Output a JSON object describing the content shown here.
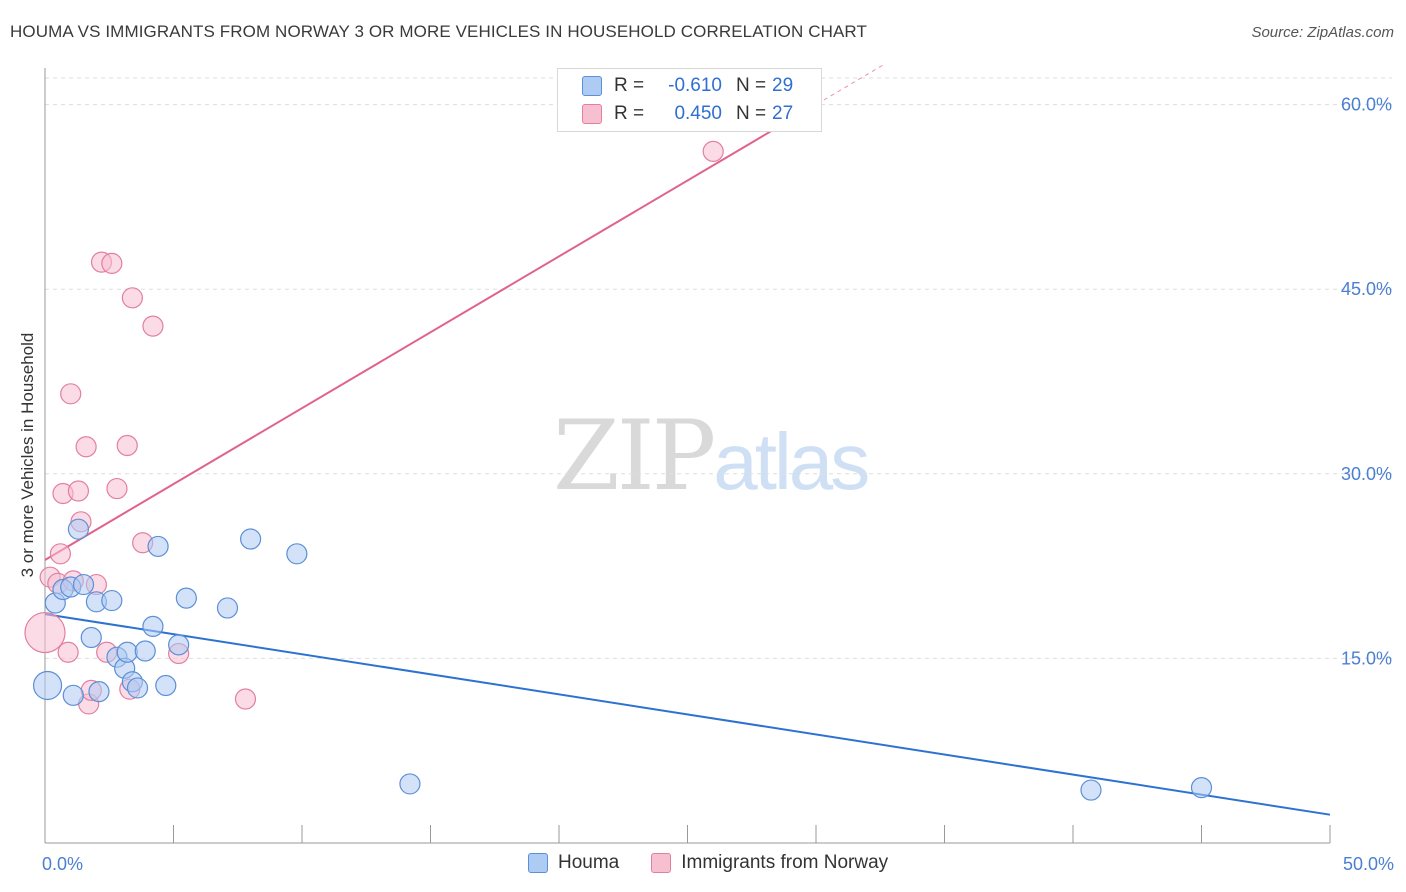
{
  "title": "HOUMA VS IMMIGRANTS FROM NORWAY 3 OR MORE VEHICLES IN HOUSEHOLD CORRELATION CHART",
  "source": "Source: ZipAtlas.com",
  "watermark": {
    "zip": "ZIP",
    "atlas": "atlas"
  },
  "legend": {
    "rows": [
      {
        "r_label": "R =",
        "r_value": "-0.610",
        "n_label": "N =",
        "n_value": "29"
      },
      {
        "r_label": "R =",
        "r_value": "0.450",
        "n_label": "N =",
        "n_value": "27"
      }
    ]
  },
  "colors": {
    "houma_fill": "#aecbf3",
    "houma_stroke": "#5b8fd6",
    "houma_line": "#2d72d2",
    "norway_fill": "#f7c0d1",
    "norway_stroke": "#e27fa0",
    "norway_line": "#e0638c",
    "grid": "#dddddd",
    "axis": "#999999"
  },
  "chart_data": {
    "type": "scatter",
    "title": "HOUMA VS IMMIGRANTS FROM NORWAY 3 OR MORE VEHICLES IN HOUSEHOLD CORRELATION CHART",
    "xlabel": "",
    "ylabel": "3 or more Vehicles in Household",
    "xlim": [
      0,
      50
    ],
    "ylim": [
      0,
      62
    ],
    "x_tick_labels": [
      "0.0%",
      "50.0%"
    ],
    "y_ticks": [
      15,
      30,
      45,
      60
    ],
    "y_tick_labels": [
      "15.0%",
      "30.0%",
      "45.0%",
      "60.0%"
    ],
    "series": [
      {
        "name": "Houma",
        "points": [
          {
            "x": 0.1,
            "y": 12.8,
            "size": 14
          },
          {
            "x": 0.4,
            "y": 19.5,
            "size": 10
          },
          {
            "x": 0.7,
            "y": 20.6,
            "size": 10
          },
          {
            "x": 1.0,
            "y": 20.8,
            "size": 10
          },
          {
            "x": 1.5,
            "y": 21.0,
            "size": 10
          },
          {
            "x": 1.1,
            "y": 12.0,
            "size": 10
          },
          {
            "x": 1.3,
            "y": 25.5,
            "size": 10
          },
          {
            "x": 1.8,
            "y": 16.7,
            "size": 10
          },
          {
            "x": 2.0,
            "y": 19.6,
            "size": 10
          },
          {
            "x": 2.1,
            "y": 12.3,
            "size": 10
          },
          {
            "x": 2.6,
            "y": 19.7,
            "size": 10
          },
          {
            "x": 2.8,
            "y": 15.1,
            "size": 10
          },
          {
            "x": 3.1,
            "y": 14.2,
            "size": 10
          },
          {
            "x": 3.2,
            "y": 15.5,
            "size": 10
          },
          {
            "x": 3.4,
            "y": 13.1,
            "size": 10
          },
          {
            "x": 3.6,
            "y": 12.6,
            "size": 10
          },
          {
            "x": 3.9,
            "y": 15.6,
            "size": 10
          },
          {
            "x": 4.2,
            "y": 17.6,
            "size": 10
          },
          {
            "x": 4.4,
            "y": 24.1,
            "size": 10
          },
          {
            "x": 4.7,
            "y": 12.8,
            "size": 10
          },
          {
            "x": 5.2,
            "y": 16.1,
            "size": 10
          },
          {
            "x": 5.5,
            "y": 19.9,
            "size": 10
          },
          {
            "x": 7.1,
            "y": 19.1,
            "size": 10
          },
          {
            "x": 8.0,
            "y": 24.7,
            "size": 10
          },
          {
            "x": 9.8,
            "y": 23.5,
            "size": 10
          },
          {
            "x": 14.2,
            "y": 4.8,
            "size": 10
          },
          {
            "x": 40.7,
            "y": 4.3,
            "size": 10
          },
          {
            "x": 45.0,
            "y": 4.5,
            "size": 10
          }
        ],
        "trend": {
          "x0": 0,
          "y0": 18.6,
          "x1": 50,
          "y1": 2.3
        }
      },
      {
        "name": "Immigrants from Norway",
        "points": [
          {
            "x": 0.0,
            "y": 17.1,
            "size": 20
          },
          {
            "x": 0.2,
            "y": 21.6,
            "size": 10
          },
          {
            "x": 0.5,
            "y": 21.1,
            "size": 10
          },
          {
            "x": 0.6,
            "y": 23.5,
            "size": 10
          },
          {
            "x": 0.7,
            "y": 28.4,
            "size": 10
          },
          {
            "x": 0.9,
            "y": 15.5,
            "size": 10
          },
          {
            "x": 1.0,
            "y": 36.5,
            "size": 10
          },
          {
            "x": 1.1,
            "y": 21.3,
            "size": 10
          },
          {
            "x": 1.3,
            "y": 28.6,
            "size": 10
          },
          {
            "x": 1.4,
            "y": 26.1,
            "size": 10
          },
          {
            "x": 1.6,
            "y": 32.2,
            "size": 10
          },
          {
            "x": 1.7,
            "y": 11.3,
            "size": 10
          },
          {
            "x": 1.8,
            "y": 12.4,
            "size": 10
          },
          {
            "x": 2.0,
            "y": 21.0,
            "size": 10
          },
          {
            "x": 2.2,
            "y": 47.2,
            "size": 10
          },
          {
            "x": 2.4,
            "y": 15.5,
            "size": 10
          },
          {
            "x": 2.6,
            "y": 47.1,
            "size": 10
          },
          {
            "x": 2.8,
            "y": 28.8,
            "size": 10
          },
          {
            "x": 3.2,
            "y": 32.3,
            "size": 10
          },
          {
            "x": 3.3,
            "y": 12.5,
            "size": 10
          },
          {
            "x": 3.4,
            "y": 44.3,
            "size": 10
          },
          {
            "x": 3.8,
            "y": 24.4,
            "size": 10
          },
          {
            "x": 4.2,
            "y": 42.0,
            "size": 10
          },
          {
            "x": 5.2,
            "y": 15.4,
            "size": 10
          },
          {
            "x": 7.8,
            "y": 11.7,
            "size": 10
          },
          {
            "x": 26.0,
            "y": 56.2,
            "size": 10
          }
        ],
        "trend": {
          "x0": 0,
          "y0": 23.0,
          "x1": 30,
          "y1": 60.0,
          "solid_until_x": 30
        }
      }
    ]
  },
  "bottom_legend": [
    {
      "label": "Houma"
    },
    {
      "label": "Immigrants from Norway"
    }
  ]
}
